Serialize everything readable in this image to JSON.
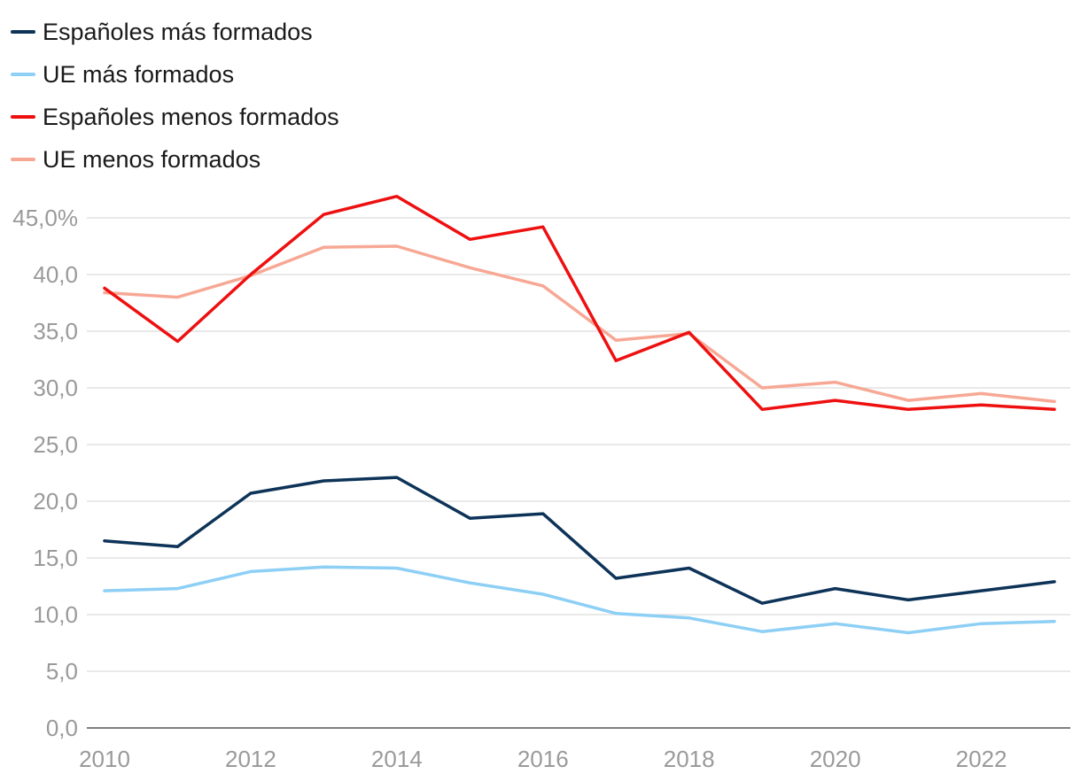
{
  "chart_data": {
    "type": "line",
    "title": "",
    "xlabel": "",
    "ylabel": "",
    "x": [
      2010,
      2011,
      2012,
      2013,
      2014,
      2015,
      2016,
      2017,
      2018,
      2019,
      2020,
      2021,
      2022,
      2023
    ],
    "xlim": [
      2010,
      2023
    ],
    "ylim": [
      0,
      45
    ],
    "grid": true,
    "legend_position": "top-left",
    "x_ticks": [
      "2010",
      "2012",
      "2014",
      "2016",
      "2018",
      "2020",
      "2022"
    ],
    "y_ticks": [
      "0,0",
      "5,0",
      "10,0",
      "15,0",
      "20,0",
      "25,0",
      "30,0",
      "35,0",
      "40,0",
      "45,0%"
    ],
    "series": [
      {
        "name": "Españoles más formados",
        "color": "#0d3358",
        "values": [
          16.5,
          16.0,
          20.7,
          21.8,
          22.1,
          18.5,
          18.9,
          13.2,
          14.1,
          11.0,
          12.3,
          11.3,
          12.1,
          12.9
        ]
      },
      {
        "name": "UE más formados",
        "color": "#8dcff5",
        "values": [
          12.1,
          12.3,
          13.8,
          14.2,
          14.1,
          12.8,
          11.8,
          10.1,
          9.7,
          8.5,
          9.2,
          8.4,
          9.2,
          9.4
        ]
      },
      {
        "name": "Españoles menos formados",
        "color": "#ee1010",
        "values": [
          38.8,
          34.1,
          40.0,
          45.3,
          46.9,
          43.1,
          44.2,
          32.4,
          34.9,
          28.1,
          28.9,
          28.1,
          28.5,
          28.1
        ]
      },
      {
        "name": "UE menos formados",
        "color": "#f7a895",
        "values": [
          38.4,
          38.0,
          39.9,
          42.4,
          42.5,
          40.6,
          39.0,
          34.2,
          34.8,
          30.0,
          30.5,
          28.9,
          29.5,
          28.8
        ]
      }
    ]
  }
}
